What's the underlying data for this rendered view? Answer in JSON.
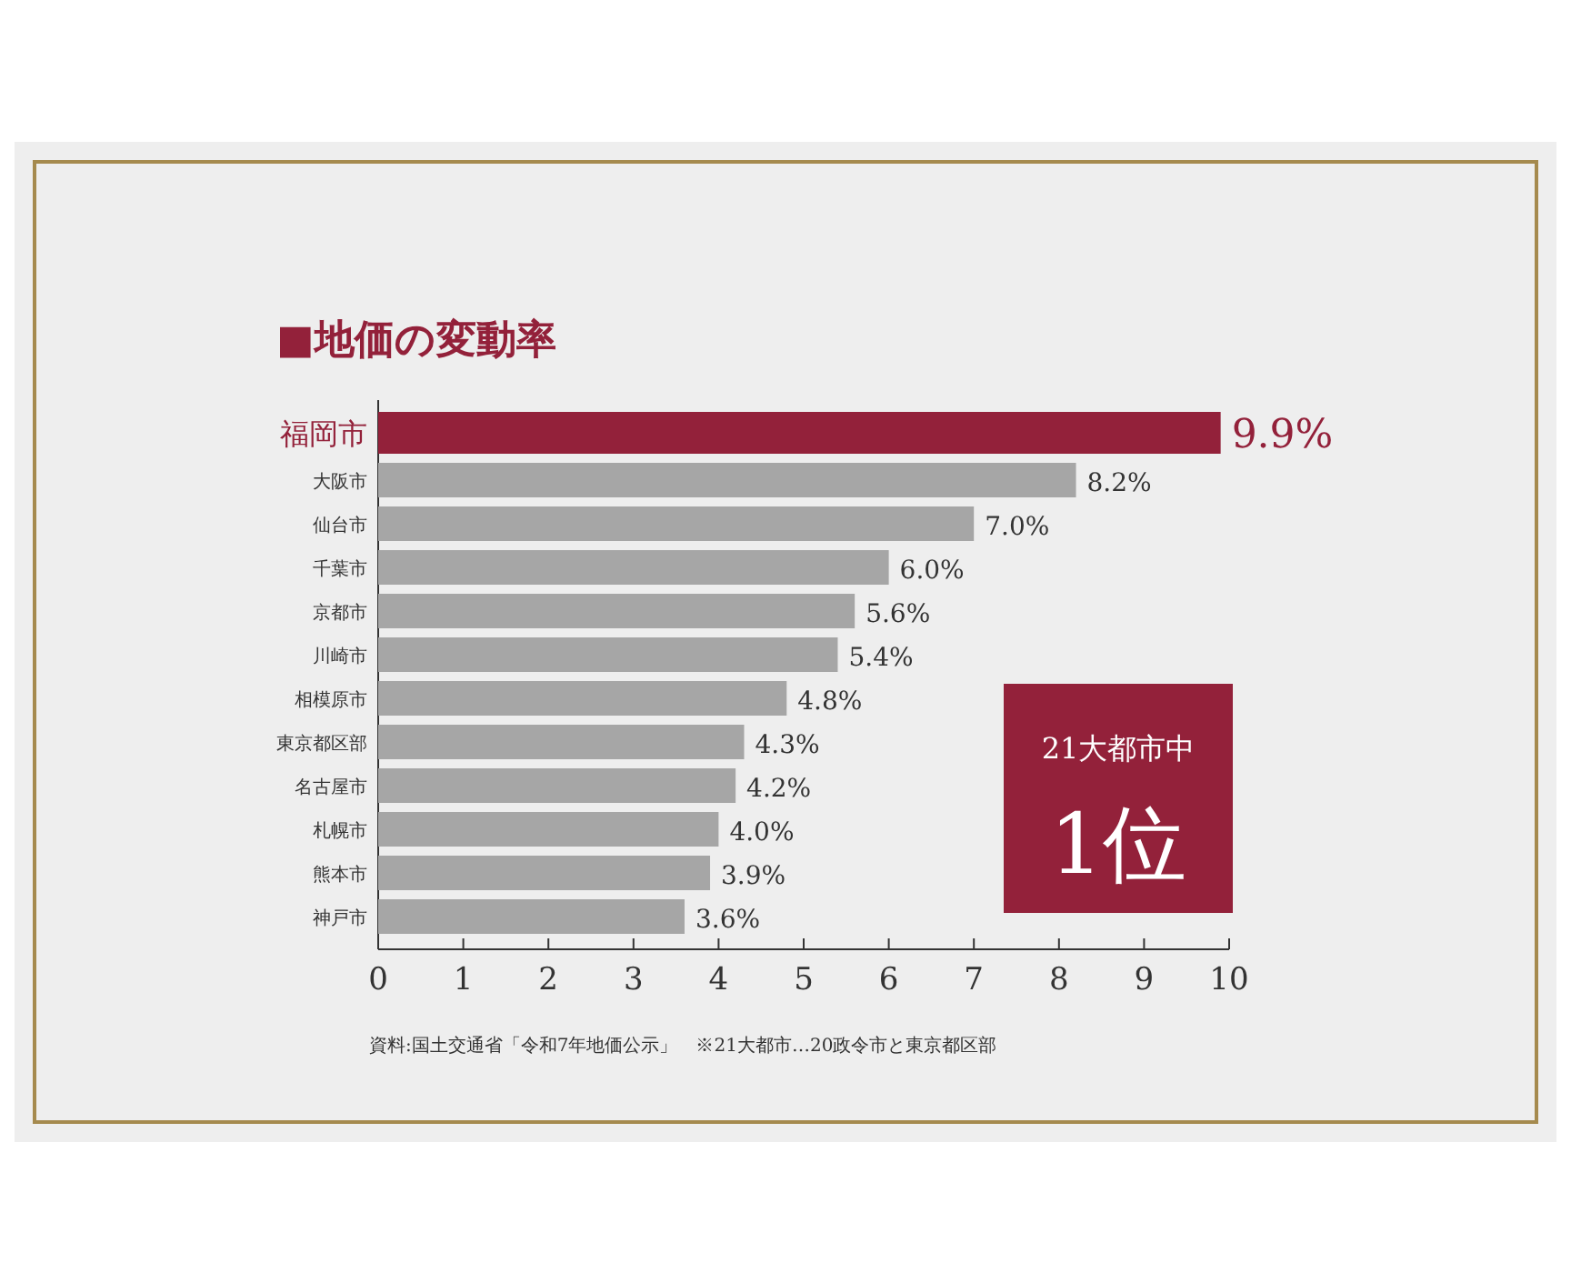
{
  "chart_data": {
    "type": "bar",
    "orientation": "horizontal",
    "title": "■地価の変動率",
    "categories": [
      "福岡市",
      "大阪市",
      "仙台市",
      "千葉市",
      "京都市",
      "川崎市",
      "相模原市",
      "東京都区部",
      "名古屋市",
      "札幌市",
      "熊本市",
      "神戸市"
    ],
    "values": [
      9.9,
      8.2,
      7.0,
      6.0,
      5.6,
      5.4,
      4.8,
      4.3,
      4.2,
      4.0,
      3.9,
      3.6
    ],
    "value_labels": [
      "9.9%",
      "8.2%",
      "7.0%",
      "6.0%",
      "5.6%",
      "5.4%",
      "4.8%",
      "4.3%",
      "4.2%",
      "4.0%",
      "3.9%",
      "3.6%"
    ],
    "colors": [
      "#93213a",
      "#a6a6a6",
      "#a6a6a6",
      "#a6a6a6",
      "#a6a6a6",
      "#a6a6a6",
      "#a6a6a6",
      "#a6a6a6",
      "#a6a6a6",
      "#a6a6a6",
      "#a6a6a6",
      "#a6a6a6"
    ],
    "xlim": [
      0,
      10
    ],
    "xticks": [
      0,
      1,
      2,
      3,
      4,
      5,
      6,
      7,
      8,
      9,
      10
    ],
    "annotations": [
      "21大都市中",
      "1位",
      "資料:国土交通省「令和7年地価公示」　※21大都市…20政令市と東京都区部"
    ]
  }
}
